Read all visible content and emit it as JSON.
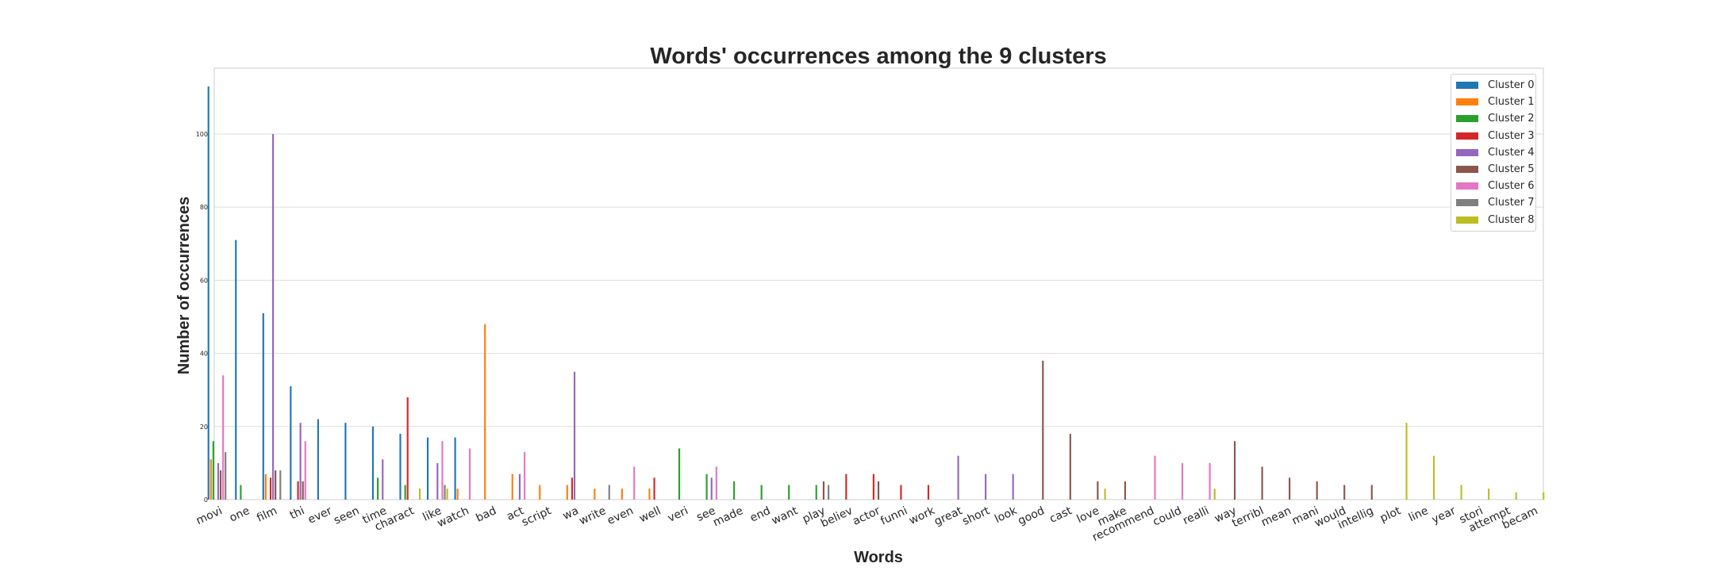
{
  "chart_data": {
    "type": "bar",
    "title": "Words' occurrences among the 9 clusters",
    "xlabel": "Words",
    "ylabel": "Number of occurrences",
    "ylim": [
      0,
      118
    ],
    "yticks": [
      0,
      20,
      40,
      60,
      80,
      100
    ],
    "grid": "horizontal",
    "legend_position": "top-right",
    "colors": [
      "#1f77b4",
      "#ff7f0e",
      "#2ca02c",
      "#d62728",
      "#9467bd",
      "#8c564b",
      "#e377c2",
      "#7f7f7f",
      "#bcbd22"
    ],
    "categories": [
      "movi",
      "one",
      "film",
      "thi",
      "ever",
      "seen",
      "time",
      "charact",
      "like",
      "watch",
      "bad",
      "act",
      "script",
      "wa",
      "write",
      "even",
      "well",
      "veri",
      "see",
      "made",
      "end",
      "want",
      "play",
      "believ",
      "actor",
      "funni",
      "work",
      "great",
      "short",
      "look",
      "good",
      "cast",
      "love",
      "make",
      "recommend",
      "could",
      "realli",
      "way",
      "terribl",
      "mean",
      "mani",
      "would",
      "intellig",
      "plot",
      "line",
      "year",
      "stori",
      "attempt",
      "becam"
    ],
    "series": [
      {
        "name": "Cluster 0",
        "values": [
          113,
          71,
          51,
          31,
          22,
          21,
          20,
          18,
          17,
          17,
          0,
          0,
          0,
          0,
          0,
          0,
          0,
          0,
          0,
          0,
          0,
          0,
          0,
          0,
          0,
          0,
          0,
          0,
          0,
          0,
          0,
          0,
          0,
          0,
          0,
          0,
          0,
          0,
          0,
          0,
          0,
          0,
          0,
          0,
          0,
          0,
          0,
          0,
          0
        ]
      },
      {
        "name": "Cluster 1",
        "values": [
          11,
          0,
          7,
          0,
          0,
          0,
          0,
          0,
          0,
          3,
          48,
          7,
          4,
          4,
          3,
          3,
          3,
          0,
          0,
          0,
          0,
          0,
          0,
          0,
          0,
          0,
          0,
          0,
          0,
          0,
          0,
          0,
          0,
          0,
          0,
          0,
          0,
          0,
          0,
          0,
          0,
          0,
          0,
          0,
          0,
          0,
          0,
          0,
          0
        ]
      },
      {
        "name": "Cluster 2",
        "values": [
          16,
          4,
          0,
          0,
          0,
          0,
          6,
          4,
          0,
          0,
          0,
          0,
          0,
          0,
          0,
          0,
          0,
          14,
          7,
          5,
          4,
          4,
          4,
          0,
          0,
          0,
          0,
          0,
          0,
          0,
          0,
          0,
          0,
          0,
          0,
          0,
          0,
          0,
          0,
          0,
          0,
          0,
          0,
          0,
          0,
          0,
          0,
          0,
          0
        ]
      },
      {
        "name": "Cluster 3",
        "values": [
          0,
          0,
          6,
          5,
          0,
          0,
          0,
          28,
          0,
          0,
          0,
          0,
          0,
          6,
          0,
          0,
          6,
          0,
          0,
          0,
          0,
          0,
          0,
          7,
          7,
          4,
          4,
          0,
          0,
          0,
          0,
          0,
          0,
          0,
          0,
          0,
          0,
          0,
          0,
          0,
          0,
          0,
          0,
          0,
          0,
          0,
          0,
          0,
          0
        ]
      },
      {
        "name": "Cluster 4",
        "values": [
          10,
          0,
          100,
          21,
          0,
          0,
          11,
          0,
          10,
          0,
          0,
          7,
          0,
          35,
          0,
          0,
          0,
          0,
          6,
          0,
          0,
          0,
          0,
          0,
          0,
          0,
          0,
          12,
          7,
          7,
          0,
          0,
          0,
          0,
          0,
          0,
          0,
          0,
          0,
          0,
          0,
          0,
          0,
          0,
          0,
          0,
          0,
          0,
          0
        ]
      },
      {
        "name": "Cluster 5",
        "values": [
          8,
          0,
          8,
          5,
          0,
          0,
          0,
          0,
          0,
          0,
          0,
          0,
          0,
          0,
          0,
          0,
          0,
          0,
          0,
          0,
          0,
          0,
          5,
          0,
          5,
          0,
          0,
          0,
          0,
          0,
          38,
          18,
          5,
          5,
          0,
          0,
          0,
          16,
          9,
          6,
          5,
          4,
          4,
          0,
          0,
          0,
          0,
          0,
          0
        ]
      },
      {
        "name": "Cluster 6",
        "values": [
          34,
          0,
          0,
          16,
          0,
          0,
          0,
          0,
          16,
          14,
          0,
          13,
          0,
          0,
          0,
          9,
          0,
          0,
          9,
          0,
          0,
          0,
          0,
          0,
          0,
          0,
          0,
          0,
          0,
          0,
          0,
          0,
          0,
          0,
          12,
          10,
          10,
          0,
          0,
          0,
          0,
          0,
          0,
          0,
          0,
          0,
          0,
          0,
          0
        ]
      },
      {
        "name": "Cluster 7",
        "values": [
          13,
          0,
          8,
          0,
          0,
          0,
          0,
          0,
          4,
          0,
          0,
          0,
          0,
          0,
          4,
          0,
          0,
          0,
          0,
          0,
          0,
          0,
          4,
          0,
          0,
          0,
          0,
          0,
          0,
          0,
          0,
          0,
          0,
          0,
          0,
          0,
          0,
          0,
          0,
          0,
          0,
          0,
          0,
          0,
          0,
          0,
          0,
          0,
          0
        ]
      },
      {
        "name": "Cluster 8",
        "values": [
          0,
          0,
          0,
          0,
          0,
          0,
          0,
          3,
          3,
          0,
          0,
          0,
          0,
          0,
          0,
          0,
          0,
          0,
          0,
          0,
          0,
          0,
          0,
          0,
          0,
          0,
          0,
          0,
          0,
          0,
          0,
          0,
          3,
          0,
          0,
          0,
          3,
          0,
          0,
          0,
          0,
          0,
          0,
          21,
          12,
          4,
          3,
          2,
          2
        ]
      }
    ]
  }
}
